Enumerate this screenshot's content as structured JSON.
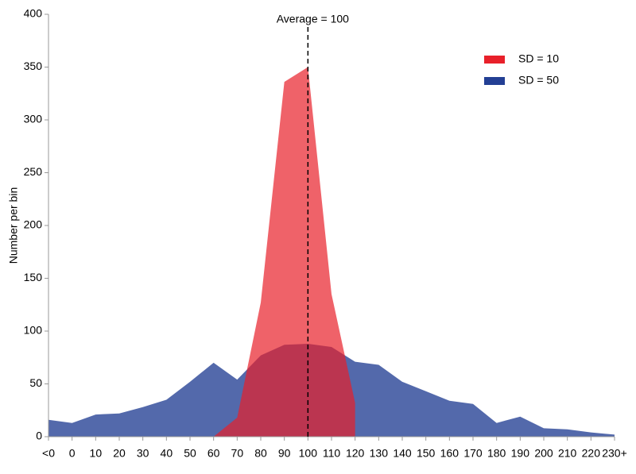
{
  "chart_data": {
    "type": "area",
    "y_label": "Number per bin",
    "categories": [
      "<0",
      "0",
      "10",
      "20",
      "30",
      "40",
      "50",
      "60",
      "70",
      "80",
      "90",
      "100",
      "110",
      "120",
      "130",
      "140",
      "150",
      "160",
      "170",
      "180",
      "190",
      "200",
      "210",
      "220",
      "230+"
    ],
    "series": [
      {
        "name": "SD = 10",
        "color": "#e8202a",
        "values": [
          null,
          null,
          null,
          null,
          null,
          null,
          null,
          0,
          18,
          127,
          336,
          350,
          135,
          32,
          null,
          null,
          null,
          null,
          null,
          null,
          null,
          null,
          null,
          null,
          null
        ]
      },
      {
        "name": "SD = 50",
        "color": "#233f94",
        "values": [
          16,
          13,
          21,
          22,
          28,
          35,
          52,
          70,
          54,
          77,
          87,
          88,
          85,
          71,
          68,
          52,
          43,
          34,
          31,
          13,
          19,
          8,
          7,
          4,
          2
        ]
      }
    ],
    "reference_line": {
      "category": "100",
      "label": "Average = 100"
    },
    "ylim": [
      0,
      400
    ],
    "yticks": [
      0,
      50,
      100,
      150,
      200,
      250,
      300,
      350,
      400
    ],
    "grid": false,
    "legend": "top-right"
  }
}
